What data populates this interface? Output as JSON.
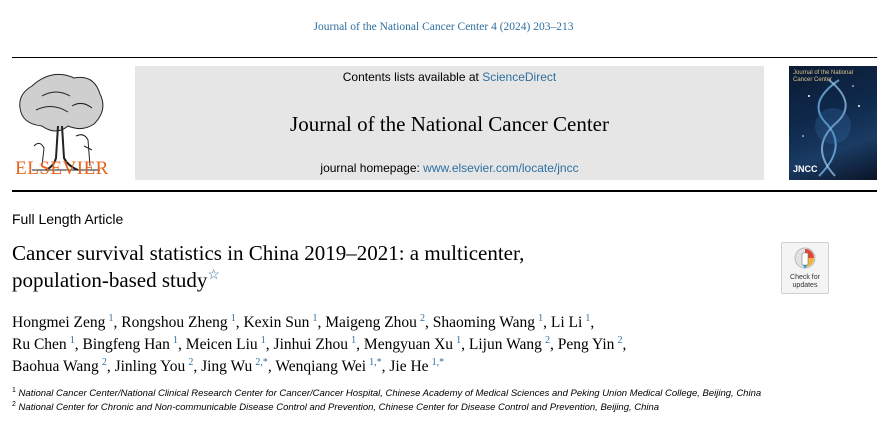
{
  "running_head": "Journal of the National Cancer Center 4 (2024) 203–213",
  "publisher": {
    "name": "ELSEVIER"
  },
  "banner": {
    "contents_prefix": "Contents lists available at",
    "contents_link": "ScienceDirect",
    "journal_title": "Journal of the National Cancer Center",
    "homepage_prefix": "journal homepage:",
    "homepage_link": "www.elsevier.com/locate/jncc"
  },
  "cover": {
    "title": "Journal of the National Cancer Center",
    "badge": "JNCC"
  },
  "article": {
    "type": "Full Length Article",
    "title_line1": "Cancer survival statistics in China 2019–2021: a multicenter,",
    "title_line2": "population-based study",
    "title_mark": "☆"
  },
  "crossmark": {
    "line1": "Check for",
    "line2": "updates"
  },
  "authors": [
    {
      "name": "Hongmei Zeng",
      "sup": "1",
      "sep": ","
    },
    {
      "name": "Rongshou Zheng",
      "sup": "1",
      "sep": ","
    },
    {
      "name": "Kexin Sun",
      "sup": "1",
      "sep": ","
    },
    {
      "name": "Maigeng Zhou",
      "sup": "2",
      "sep": ","
    },
    {
      "name": "Shaoming Wang",
      "sup": "1",
      "sep": ","
    },
    {
      "name": "Li Li",
      "sup": "1",
      "sep": ","
    },
    {
      "name": "Ru Chen",
      "sup": "1",
      "sep": ","
    },
    {
      "name": "Bingfeng Han",
      "sup": "1",
      "sep": ","
    },
    {
      "name": "Meicen Liu",
      "sup": "1",
      "sep": ","
    },
    {
      "name": "Jinhui Zhou",
      "sup": "1",
      "sep": ","
    },
    {
      "name": "Mengyuan Xu",
      "sup": "1",
      "sep": ","
    },
    {
      "name": "Lijun Wang",
      "sup": "2",
      "sep": ","
    },
    {
      "name": "Peng Yin",
      "sup": "2",
      "sep": ","
    },
    {
      "name": "Baohua Wang",
      "sup": "2",
      "sep": ","
    },
    {
      "name": "Jinling You",
      "sup": "2",
      "sep": ","
    },
    {
      "name": "Jing Wu",
      "sup": "2,*",
      "sep": ","
    },
    {
      "name": "Wenqiang Wei",
      "sup": "1,*",
      "sep": ","
    },
    {
      "name": "Jie He",
      "sup": "1,*",
      "sep": ""
    }
  ],
  "affiliations": [
    {
      "num": "1",
      "text": "National Cancer Center/National Clinical Research Center for Cancer/Cancer Hospital, Chinese Academy of Medical Sciences and Peking Union Medical College, Beijing, China"
    },
    {
      "num": "2",
      "text": "National Center for Chronic and Non-communicable Disease Control and Prevention, Chinese Center for Disease Control and Prevention, Beijing, China"
    }
  ],
  "colors": {
    "link": "#2e6fa0",
    "publisher": "#e8641c",
    "banner_bg": "#e6e6e6"
  }
}
